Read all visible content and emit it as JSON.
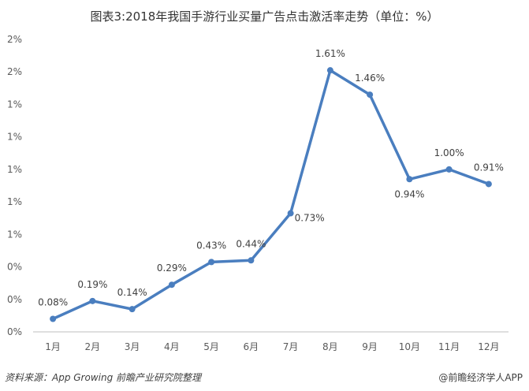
{
  "title": "图表3:2018年我国手游行业买量广告点击激活率走势（单位：%）",
  "source": "资料来源：App Growing  前瞻产业研究院整理",
  "brand": "@前瞻经济学人APP",
  "colors": {
    "line": "#4a7ebf",
    "axis": "#bfbfbf",
    "background": "#ffffff"
  },
  "chart_data": {
    "type": "line",
    "title": "图表3:2018年我国手游行业买量广告点击激活率走势（单位：%）",
    "xlabel": "",
    "ylabel": "",
    "categories": [
      "1月",
      "2月",
      "3月",
      "4月",
      "5月",
      "6月",
      "7月",
      "8月",
      "9月",
      "10月",
      "11月",
      "12月"
    ],
    "series": [
      {
        "values": [
          0.08,
          0.19,
          0.14,
          0.29,
          0.43,
          0.44,
          0.73,
          1.61,
          1.46,
          0.94,
          1.0,
          0.91
        ]
      }
    ],
    "data_labels": [
      "0.08%",
      "0.19%",
      "0.14%",
      "0.29%",
      "0.43%",
      "0.44%",
      "0.73%",
      "1.61%",
      "1.46%",
      "0.94%",
      "1.00%",
      "0.91%"
    ],
    "y_tick_labels": [
      "0%",
      "0%",
      "0%",
      "1%",
      "1%",
      "1%",
      "1%",
      "1%",
      "2%",
      "2%"
    ],
    "ylim": [
      0,
      1.8
    ],
    "grid": false,
    "legend": "none"
  }
}
